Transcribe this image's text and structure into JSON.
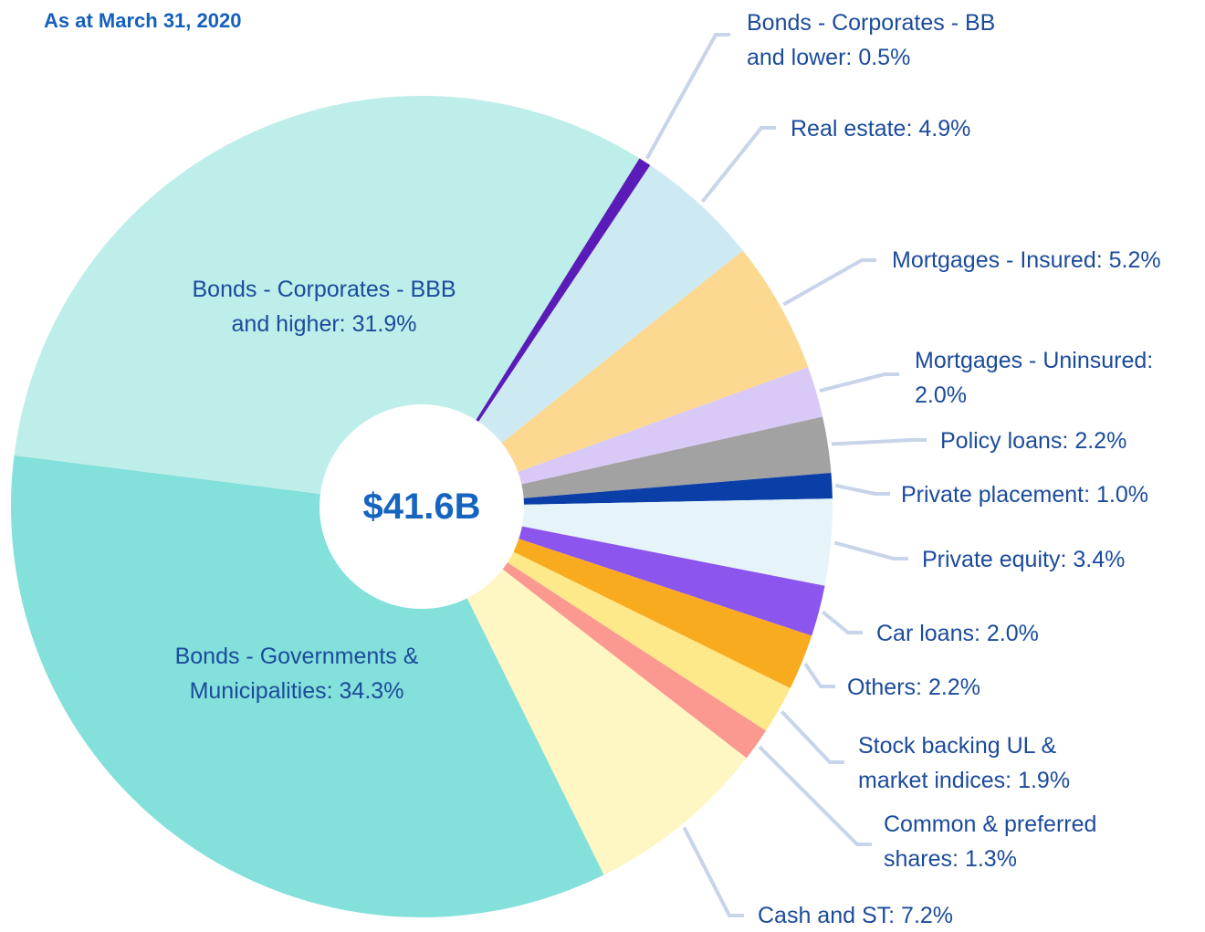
{
  "chart_data": {
    "type": "donut",
    "title": "As at March 31, 2020",
    "center_label": "$41.6B",
    "categories": [
      "Bonds - Corporates - BB and lower:",
      "Real estate:",
      "Mortgages - Insured:",
      "Mortgages - Uninsured:",
      "Policy loans:",
      "Private placement:",
      "Private equity:",
      "Car loans:",
      "Others:",
      "Stock backing UL & market indices:",
      "Common & preferred shares:",
      "Cash and ST:",
      "Bonds - Governments & Municipalities:",
      "Bonds - Corporates - BBB and higher:"
    ],
    "values": [
      0.5,
      4.9,
      5.2,
      2.0,
      2.2,
      1.0,
      3.4,
      2.0,
      2.2,
      1.9,
      1.3,
      7.2,
      34.3,
      31.9
    ],
    "value_labels": [
      "0.5%",
      "4.9%",
      "5.2%",
      "2.0%",
      "2.2%",
      "1.0%",
      "3.4%",
      "2.0%",
      "2.2%",
      "1.9%",
      "1.3%",
      "7.2%",
      "34.3%",
      "31.9%"
    ],
    "colors": [
      "#5a1cb8",
      "#cdeaf3",
      "#fcd891",
      "#d9c9f7",
      "#a2a2a2",
      "#0a3fa8",
      "#e6f4fa",
      "#8c55ee",
      "#f8ab1f",
      "#fde98a",
      "#fb9990",
      "#fef6c3",
      "#84e0da",
      "#bdeeea"
    ]
  }
}
